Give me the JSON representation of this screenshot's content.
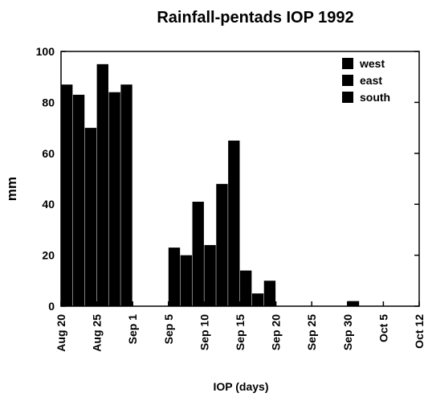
{
  "chart_data": {
    "type": "bar",
    "title": "Rainfall-pentads  IOP 1992",
    "xlabel": "IOP (days)",
    "ylabel": "mm",
    "x": [
      0,
      1,
      2,
      3,
      4,
      5,
      6,
      7,
      8,
      9
    ],
    "series": [
      {
        "name": "west",
        "color": "#000000",
        "values": [
          87,
          95,
          0,
          23,
          24,
          14,
          0,
          0,
          2,
          0
        ]
      },
      {
        "name": "east",
        "color": "#000000",
        "values": [
          83,
          84,
          0,
          20,
          48,
          5,
          0,
          0,
          0,
          0
        ]
      },
      {
        "name": "south",
        "color": "#000000",
        "values": [
          70,
          87,
          0,
          41,
          65,
          10,
          0,
          0,
          0,
          0
        ]
      }
    ],
    "xlim": [
      0,
      10
    ],
    "xticks": [
      {
        "value": 0,
        "label": "Aug 20"
      },
      {
        "value": 1,
        "label": "Aug 25"
      },
      {
        "value": 2,
        "label": "Sep 1"
      },
      {
        "value": 3,
        "label": "Sep 5"
      },
      {
        "value": 4,
        "label": "Sep 10"
      },
      {
        "value": 5,
        "label": "Sep 15"
      },
      {
        "value": 6,
        "label": "Sep 20"
      },
      {
        "value": 7,
        "label": "Sep 25"
      },
      {
        "value": 8,
        "label": "Sep 30"
      },
      {
        "value": 9,
        "label": "Oct 5"
      },
      {
        "value": 10,
        "label": "Oct 12"
      }
    ],
    "ylim": [
      0,
      100
    ],
    "yticks": [
      0,
      20,
      40,
      60,
      80,
      100
    ],
    "legend": "upper right"
  }
}
